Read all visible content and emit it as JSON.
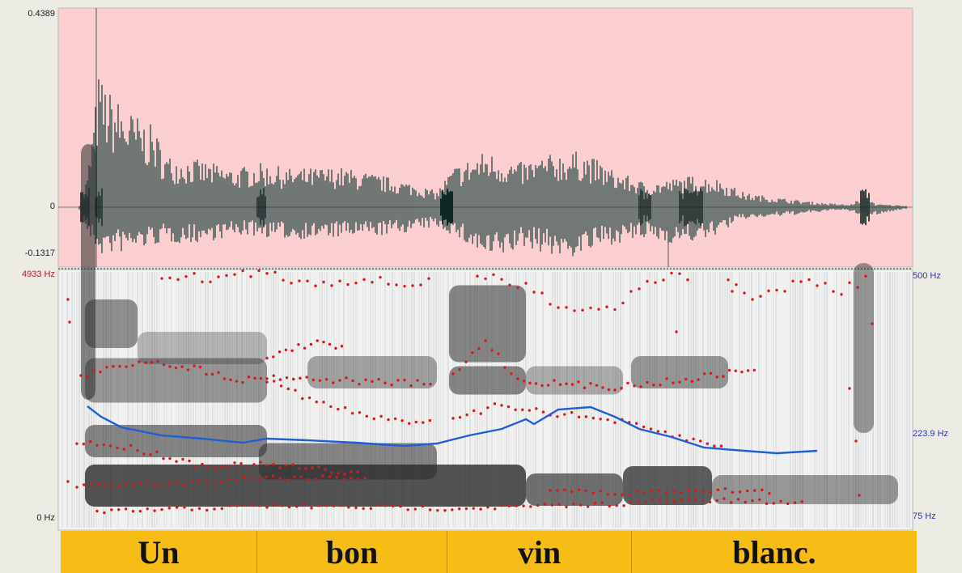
{
  "waveform": {
    "y_max": "0.4389",
    "y_zero": "0",
    "y_min": "-0.1317",
    "background_color": "#fbcfcf",
    "trace_color": "#163d3a"
  },
  "spectrogram": {
    "freq_max": "4933 Hz",
    "freq_min": "0 Hz",
    "pitch_max": "500 Hz",
    "pitch_mid": "223.9 Hz",
    "pitch_min": "75 Hz",
    "formant_color": "#d41a1a",
    "pitch_color": "#1f5fd6"
  },
  "tier": {
    "color": "#f6bd16",
    "words": [
      "Un",
      "bon",
      "vin",
      "blanc."
    ]
  }
}
